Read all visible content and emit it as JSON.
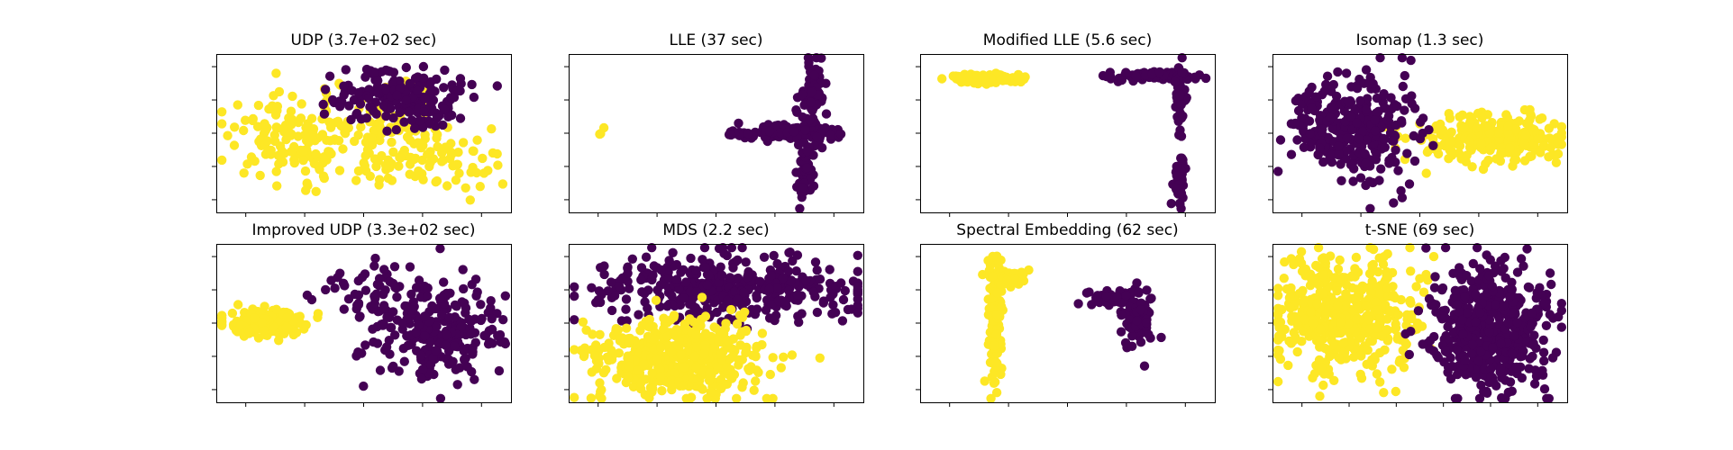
{
  "colors": {
    "class_0": "#440154",
    "class_1": "#fde725"
  },
  "chart_data": [
    {
      "type": "scatter",
      "title": "UDP (3.7e+02 sec)",
      "xlim": [
        -1.05,
        1.05
      ],
      "ylim": [
        -1.05,
        1.05
      ],
      "xticks": 5,
      "yticks": 5,
      "series": [
        {
          "class": 1,
          "clusters": [
            {
              "cx": -0.48,
              "cy": -0.05,
              "sx": 0.26,
              "sy": 0.28,
              "n": 150
            },
            {
              "cx": 0.18,
              "cy": 0.05,
              "sx": 0.18,
              "sy": 0.4,
              "n": 80
            },
            {
              "cx": 0.55,
              "cy": -0.35,
              "sx": 0.22,
              "sy": 0.22,
              "n": 70
            }
          ]
        },
        {
          "class": 0,
          "clusters": [
            {
              "cx": 0.25,
              "cy": 0.52,
              "sx": 0.22,
              "sy": 0.16,
              "n": 180
            },
            {
              "cx": 0.45,
              "cy": 0.18,
              "sx": 0.12,
              "sy": 0.1,
              "n": 20
            }
          ]
        }
      ]
    },
    {
      "type": "scatter",
      "title": "LLE (37 sec)",
      "xlim": [
        -1.05,
        1.05
      ],
      "ylim": [
        -1.05,
        1.05
      ],
      "xticks": 5,
      "yticks": 5,
      "series": [
        {
          "class": 1,
          "clusters": [
            {
              "cx": -0.82,
              "cy": 0.02,
              "sx": 0.02,
              "sy": 0.03,
              "n": 3
            }
          ]
        },
        {
          "class": 0,
          "clusters": [
            {
              "cx": 0.55,
              "cy": 0.0,
              "sx": 0.14,
              "sy": 0.05,
              "n": 120
            },
            {
              "cx": 0.68,
              "cy": 0.45,
              "sx": 0.04,
              "sy": 0.28,
              "n": 80
            },
            {
              "cx": 0.64,
              "cy": -0.45,
              "sx": 0.03,
              "sy": 0.25,
              "n": 60
            },
            {
              "cx": 0.15,
              "cy": 0.0,
              "sx": 0.05,
              "sy": 0.02,
              "n": 12
            }
          ]
        }
      ]
    },
    {
      "type": "scatter",
      "title": "Modified LLE (5.6 sec)",
      "xlim": [
        -1.05,
        1.05
      ],
      "ylim": [
        -1.05,
        1.05
      ],
      "xticks": 5,
      "yticks": 5,
      "series": [
        {
          "class": 1,
          "clusters": [
            {
              "cx": -0.6,
              "cy": 0.72,
              "sx": 0.12,
              "sy": 0.03,
              "n": 150
            }
          ]
        },
        {
          "class": 0,
          "clusters": [
            {
              "cx": 0.62,
              "cy": 0.76,
              "sx": 0.16,
              "sy": 0.03,
              "n": 80
            },
            {
              "cx": 0.8,
              "cy": 0.5,
              "sx": 0.02,
              "sy": 0.2,
              "n": 50
            },
            {
              "cx": 0.8,
              "cy": -0.65,
              "sx": 0.02,
              "sy": 0.18,
              "n": 50
            }
          ]
        }
      ]
    },
    {
      "type": "scatter",
      "title": "Isomap (1.3 sec)",
      "xlim": [
        -1.05,
        1.05
      ],
      "ylim": [
        -1.05,
        1.05
      ],
      "xticks": 5,
      "yticks": 5,
      "series": [
        {
          "class": 1,
          "clusters": [
            {
              "cx": 0.55,
              "cy": -0.05,
              "sx": 0.25,
              "sy": 0.15,
              "n": 300
            }
          ]
        },
        {
          "class": 0,
          "clusters": [
            {
              "cx": -0.55,
              "cy": 0.1,
              "sx": 0.2,
              "sy": 0.28,
              "n": 250
            },
            {
              "cx": -0.3,
              "cy": 0.0,
              "sx": 0.18,
              "sy": 0.45,
              "n": 80
            }
          ]
        }
      ]
    },
    {
      "type": "scatter",
      "title": "Improved UDP (3.3e+02 sec)",
      "xlim": [
        -1.05,
        1.05
      ],
      "ylim": [
        -1.05,
        1.05
      ],
      "xticks": 5,
      "yticks": 5,
      "series": [
        {
          "class": 1,
          "clusters": [
            {
              "cx": -0.68,
              "cy": 0.0,
              "sx": 0.15,
              "sy": 0.08,
              "n": 200
            }
          ]
        },
        {
          "class": 0,
          "clusters": [
            {
              "cx": 0.5,
              "cy": -0.1,
              "sx": 0.25,
              "sy": 0.32,
              "n": 260
            },
            {
              "cx": 0.1,
              "cy": 0.45,
              "sx": 0.2,
              "sy": 0.15,
              "n": 40
            }
          ]
        }
      ]
    },
    {
      "type": "scatter",
      "title": "MDS (2.2 sec)",
      "xlim": [
        -1.05,
        1.05
      ],
      "ylim": [
        -1.05,
        1.05
      ],
      "xticks": 5,
      "yticks": 5,
      "series": [
        {
          "class": 0,
          "clusters": [
            {
              "cx": 0.05,
              "cy": 0.45,
              "sx": 0.45,
              "sy": 0.22,
              "n": 400
            }
          ]
        },
        {
          "class": 1,
          "clusters": [
            {
              "cx": -0.25,
              "cy": -0.45,
              "sx": 0.3,
              "sy": 0.25,
              "n": 500
            }
          ]
        }
      ]
    },
    {
      "type": "scatter",
      "title": "Spectral Embedding (62 sec)",
      "xlim": [
        -1.05,
        1.05
      ],
      "ylim": [
        -1.05,
        1.05
      ],
      "xticks": 5,
      "yticks": 5,
      "series": [
        {
          "class": 1,
          "clusters": [
            {
              "cx": -0.52,
              "cy": 0.05,
              "sx": 0.025,
              "sy": 0.45,
              "n": 150
            },
            {
              "cx": -0.42,
              "cy": 0.6,
              "sx": 0.06,
              "sy": 0.05,
              "n": 60
            }
          ]
        },
        {
          "class": 0,
          "clusters": [
            {
              "cx": 0.28,
              "cy": 0.35,
              "sx": 0.08,
              "sy": 0.04,
              "n": 40
            },
            {
              "cx": 0.5,
              "cy": 0.05,
              "sx": 0.06,
              "sy": 0.22,
              "n": 80
            }
          ]
        }
      ]
    },
    {
      "type": "scatter",
      "title": "t-SNE (69 sec)",
      "xlim": [
        -1.05,
        1.05
      ],
      "ylim": [
        -1.05,
        1.05
      ],
      "xticks": 6,
      "yticks": 5,
      "series": [
        {
          "class": 1,
          "clusters": [
            {
              "cx": -0.55,
              "cy": 0.1,
              "sx": 0.25,
              "sy": 0.38,
              "n": 500
            }
          ]
        },
        {
          "class": 0,
          "clusters": [
            {
              "cx": 0.5,
              "cy": -0.05,
              "sx": 0.2,
              "sy": 0.42,
              "n": 500
            }
          ]
        }
      ]
    }
  ]
}
